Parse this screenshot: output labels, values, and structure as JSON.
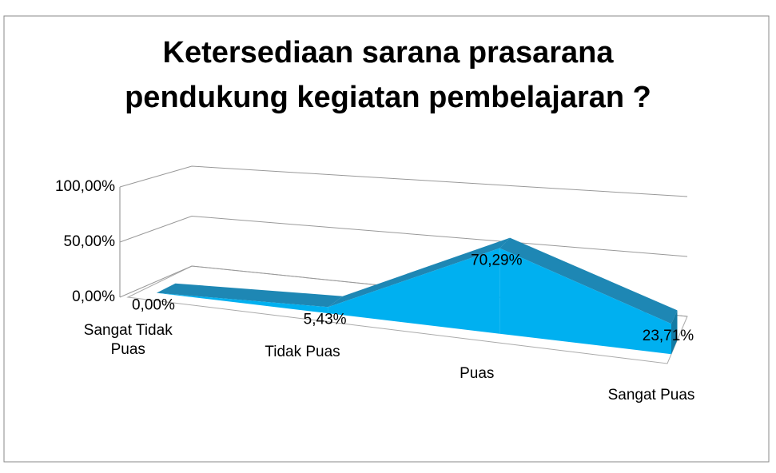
{
  "chart_data": {
    "type": "line3d",
    "title": "Ketersediaan sarana prasarana\npendukung kegiatan pembelajaran ?",
    "categories": [
      "Sangat Tidak\nPuas",
      "Tidak Puas",
      "Puas",
      "Sangat Puas"
    ],
    "values": [
      0,
      5.43,
      70.29,
      23.71
    ],
    "value_labels": [
      "0,00%",
      "5,43%",
      "70,29%",
      "23,71%"
    ],
    "color": "#00b0f0",
    "ylim": [
      0,
      100
    ],
    "yticks": [
      {
        "value": 0,
        "label": "0,00%"
      },
      {
        "value": 50,
        "label": "50,00%"
      },
      {
        "value": 100,
        "label": "100,00%"
      }
    ],
    "grid": true
  }
}
